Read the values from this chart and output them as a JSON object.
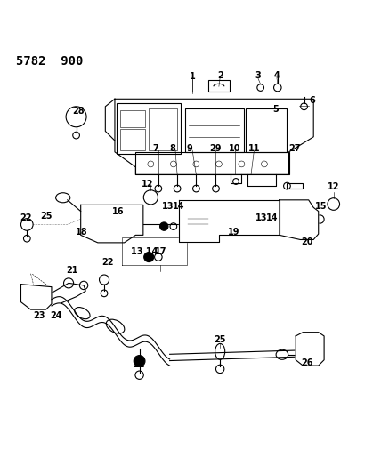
{
  "title": "5782  900",
  "bg_color": "#ffffff",
  "line_color": "#000000",
  "title_fontsize": 10,
  "label_fontsize": 7,
  "figsize": [
    4.28,
    5.33
  ],
  "dpi": 100
}
